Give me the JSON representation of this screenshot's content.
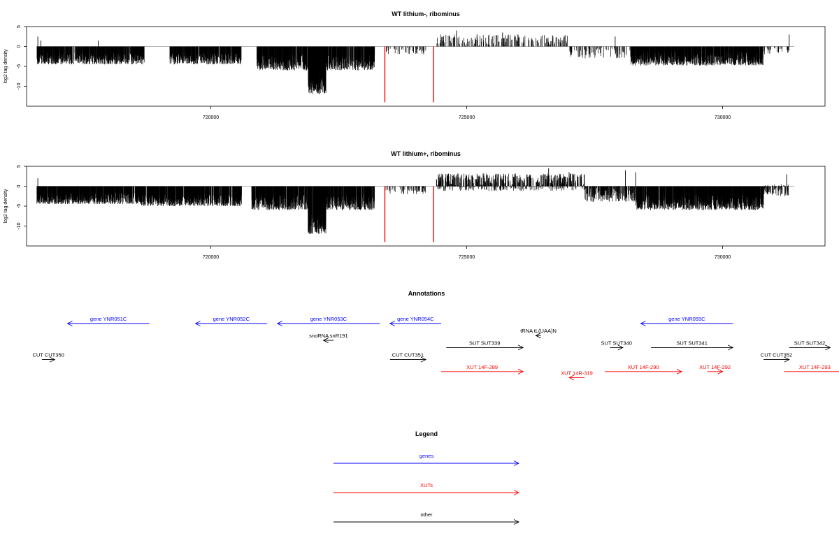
{
  "chart_data": [
    {
      "type": "bar",
      "title": "WT lithium-, ribominus",
      "xlabel": "",
      "ylabel": "log2 tag density",
      "xlim": [
        716400,
        732000
      ],
      "ylim": [
        -15,
        5
      ],
      "x_ticks": [
        720000,
        725000,
        730000
      ],
      "x_tick_labels": [
        "720000",
        "725000",
        "730000"
      ],
      "y_ticks": [
        5,
        0,
        -5,
        -10
      ],
      "y_tick_labels": [
        "5",
        "0",
        "-5",
        "-10"
      ],
      "marker_color": "#ff0000",
      "markers": [
        {
          "x": 723400,
          "y": -14
        },
        {
          "x": 724350,
          "y": -14
        }
      ],
      "series": [
        {
          "color": "#000000",
          "segments": [
            {
              "x0": 716600,
              "x1": 718700,
              "mean": -3,
              "jitter": 1.5,
              "density": 5
            },
            {
              "x0": 719200,
              "x1": 720600,
              "mean": -3,
              "jitter": 1.5,
              "density": 5
            },
            {
              "x0": 720900,
              "x1": 721900,
              "mean": -4,
              "jitter": 2,
              "density": 6
            },
            {
              "x0": 721900,
              "x1": 722250,
              "mean": -9,
              "jitter": 3,
              "density": 8
            },
            {
              "x0": 722250,
              "x1": 723200,
              "mean": -4,
              "jitter": 2,
              "density": 5
            },
            {
              "x0": 723400,
              "x1": 724200,
              "mean": -1,
              "jitter": 1,
              "density": 0.8
            },
            {
              "x0": 724400,
              "x1": 727000,
              "mean": 1.5,
              "jitter": 1.5,
              "density": 1
            },
            {
              "x0": 727000,
              "x1": 728200,
              "mean": -1.5,
              "jitter": 1.5,
              "density": 1
            },
            {
              "x0": 728200,
              "x1": 730800,
              "mean": -3,
              "jitter": 1.8,
              "density": 6
            },
            {
              "x0": 730800,
              "x1": 731300,
              "mean": -1,
              "jitter": 1,
              "density": 0.8
            }
          ],
          "spikes": [
            {
              "x": 716620,
              "y": 2.5
            },
            {
              "x": 716680,
              "y": 1.5
            },
            {
              "x": 717800,
              "y": 1.5
            },
            {
              "x": 724800,
              "y": 4
            },
            {
              "x": 725200,
              "y": 3
            },
            {
              "x": 725500,
              "y": 2.5
            },
            {
              "x": 725700,
              "y": 3.5
            },
            {
              "x": 726000,
              "y": 3
            },
            {
              "x": 727900,
              "y": 2.5
            },
            {
              "x": 731300,
              "y": 3
            }
          ]
        }
      ]
    },
    {
      "type": "bar",
      "title": "WT lithium+, ribominus",
      "xlabel": "",
      "ylabel": "log2 tag density",
      "xlim": [
        716400,
        732000
      ],
      "ylim": [
        -15,
        5
      ],
      "x_ticks": [
        720000,
        725000,
        730000
      ],
      "x_tick_labels": [
        "720000",
        "725000",
        "730000"
      ],
      "y_ticks": [
        5,
        0,
        -5,
        -10
      ],
      "y_tick_labels": [
        "5",
        "0",
        "-5",
        "-10"
      ],
      "marker_color": "#ff0000",
      "markers": [
        {
          "x": 723400,
          "y": -14
        },
        {
          "x": 724350,
          "y": -14
        }
      ],
      "series": [
        {
          "color": "#000000",
          "segments": [
            {
              "x0": 716600,
              "x1": 718600,
              "mean": -3,
              "jitter": 1.5,
              "density": 6
            },
            {
              "x0": 718600,
              "x1": 720600,
              "mean": -3.5,
              "jitter": 1.5,
              "density": 6
            },
            {
              "x0": 720800,
              "x1": 721900,
              "mean": -4,
              "jitter": 2,
              "density": 6
            },
            {
              "x0": 721900,
              "x1": 722250,
              "mean": -9,
              "jitter": 3,
              "density": 8
            },
            {
              "x0": 722250,
              "x1": 723200,
              "mean": -4,
              "jitter": 2,
              "density": 5
            },
            {
              "x0": 723400,
              "x1": 724200,
              "mean": -1,
              "jitter": 1,
              "density": 1
            },
            {
              "x0": 724400,
              "x1": 727300,
              "mean": 1,
              "jitter": 2.2,
              "density": 3
            },
            {
              "x0": 727300,
              "x1": 728300,
              "mean": -2,
              "jitter": 2,
              "density": 3
            },
            {
              "x0": 728300,
              "x1": 730800,
              "mean": -4,
              "jitter": 2,
              "density": 6
            },
            {
              "x0": 730800,
              "x1": 731300,
              "mean": -1,
              "jitter": 1.5,
              "density": 2
            }
          ],
          "spikes": [
            {
              "x": 716620,
              "y": 2
            },
            {
              "x": 726600,
              "y": 4.5
            },
            {
              "x": 727000,
              "y": 3.5
            },
            {
              "x": 728100,
              "y": 4
            },
            {
              "x": 728300,
              "y": 3.5
            },
            {
              "x": 731250,
              "y": 3
            }
          ]
        }
      ]
    }
  ],
  "annotations": {
    "title": "Annotations",
    "features": [
      {
        "label": "gene YNR051C",
        "x0": 718800,
        "x1": 717200,
        "row": 0,
        "kind": "gene"
      },
      {
        "label": "gene YNR052C",
        "x0": 721100,
        "x1": 719700,
        "row": 0,
        "kind": "gene"
      },
      {
        "label": "gene YNR053C",
        "x0": 723300,
        "x1": 721300,
        "row": 0,
        "kind": "gene"
      },
      {
        "label": "gene YNR054C",
        "x0": 724500,
        "x1": 723500,
        "row": 0,
        "kind": "gene"
      },
      {
        "label": "gene YNR055C",
        "x0": 730200,
        "x1": 728400,
        "row": 0,
        "kind": "gene"
      },
      {
        "label": "tRNA tL(UAA)N",
        "x0": 726450,
        "x1": 726350,
        "row": 1,
        "kind": "other"
      },
      {
        "label": "snoRNA snR191",
        "x0": 722400,
        "x1": 722200,
        "row": 1.4,
        "kind": "other"
      },
      {
        "label": "SUT SUT339",
        "x0": 724600,
        "x1": 726100,
        "row": 2,
        "kind": "other"
      },
      {
        "label": "SUT SUT340",
        "x0": 727800,
        "x1": 728050,
        "row": 2,
        "kind": "other"
      },
      {
        "label": "SUT SUT341",
        "x0": 728600,
        "x1": 730200,
        "row": 2,
        "kind": "other"
      },
      {
        "label": "SUT SUT342",
        "x0": 731300,
        "x1": 732100,
        "row": 2,
        "kind": "other"
      },
      {
        "label": "CUT CUT350",
        "x0": 716700,
        "x1": 716950,
        "row": 3,
        "kind": "other"
      },
      {
        "label": "CUT CUT351",
        "x0": 723500,
        "x1": 724200,
        "row": 3,
        "kind": "other"
      },
      {
        "label": "CUT CUT352",
        "x0": 730800,
        "x1": 731300,
        "row": 3,
        "kind": "other"
      },
      {
        "label": "XUT 14F-289",
        "x0": 724500,
        "x1": 726100,
        "row": 4,
        "kind": "xut"
      },
      {
        "label": "XUT 14F-290",
        "x0": 727700,
        "x1": 729200,
        "row": 4,
        "kind": "xut"
      },
      {
        "label": "XUT 14F-292",
        "x0": 729700,
        "x1": 730000,
        "row": 4,
        "kind": "xut"
      },
      {
        "label": "XUT 14R-319",
        "x0": 727300,
        "x1": 727000,
        "row": 4.5,
        "kind": "xut"
      },
      {
        "label": "XUT 14F-293",
        "x0": 731200,
        "x1": 732400,
        "row": 4,
        "kind": "xut"
      }
    ]
  },
  "legend": {
    "title": "Legend",
    "items": [
      {
        "label": "genes",
        "color": "#0000ff"
      },
      {
        "label": "XUTs",
        "color": "#ff0000"
      },
      {
        "label": "other",
        "color": "#000000"
      }
    ]
  },
  "colors": {
    "gene": "#0000ff",
    "xut": "#ff0000",
    "other": "#000000",
    "baseline": "#999999"
  }
}
